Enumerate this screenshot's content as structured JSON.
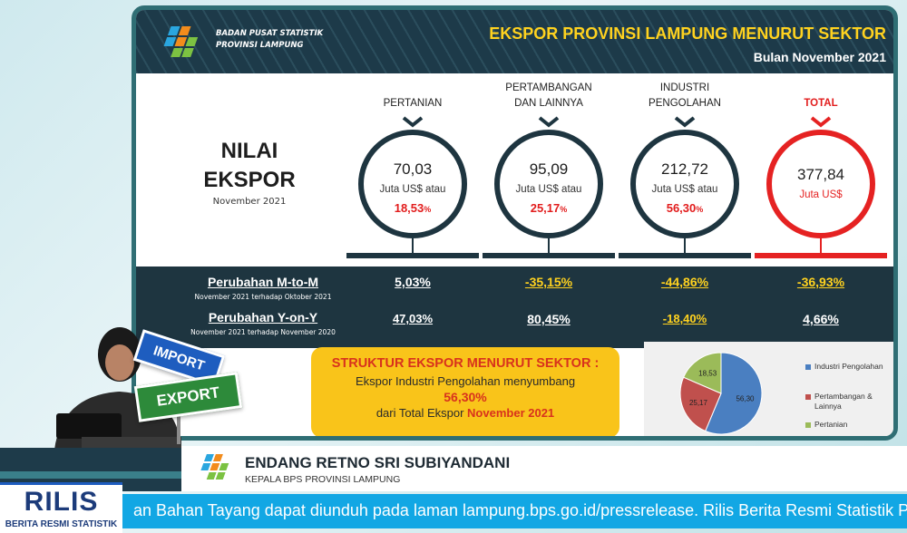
{
  "header": {
    "org_line1": "BADAN PUSAT STATISTIK",
    "org_line2": "PROVINSI LAMPUNG",
    "title": "EKSPOR PROVINSI LAMPUNG MENURUT SEKTOR",
    "subtitle": "Bulan November 2021"
  },
  "nilai": {
    "title_line1": "NILAI",
    "title_line2": "EKSPOR",
    "period": "November 2021"
  },
  "sectors": [
    {
      "label_line1": "PERTANIAN",
      "label_line2": "",
      "value": "70,03",
      "unit": "Juta US$ atau",
      "share": "18,53",
      "share_suffix": "%",
      "mtm": "5,03%",
      "yoy": "47,03%"
    },
    {
      "label_line1": "PERTAMBANGAN",
      "label_line2": "DAN LAINNYA",
      "value": "95,09",
      "unit": "Juta US$ atau",
      "share": "25,17",
      "share_suffix": "%",
      "mtm": "-35,15%",
      "yoy": "80,45%"
    },
    {
      "label_line1": "INDUSTRI",
      "label_line2": "PENGOLAHAN",
      "value": "212,72",
      "unit": "Juta US$ atau",
      "share": "56,30",
      "share_suffix": "%",
      "mtm": "-44,86%",
      "yoy": "-18,40%"
    },
    {
      "label_line1": "TOTAL",
      "label_line2": "",
      "value": "377,84",
      "unit": "Juta US$",
      "share": "",
      "share_suffix": "",
      "mtm": "-36,93%",
      "yoy": "4,66%"
    }
  ],
  "rows": {
    "mtm_label": "Perubahan M-to-M",
    "mtm_sub": "November 2021 terhadap Oktober 2021",
    "yoy_label": "Perubahan Y-on-Y",
    "yoy_sub": "November 2021 terhadap November 2020"
  },
  "struktur": {
    "title": "STRUKTUR EKSPOR MENURUT SEKTOR :",
    "line1": "Ekspor Industri Pengolahan menyumbang",
    "pct": "56,30%",
    "line3_prefix": "dari Total Ekspor",
    "line3_highlight": "November 2021"
  },
  "signs": {
    "import": "IMPORT",
    "export": "EXPORT"
  },
  "chart_data": {
    "type": "pie",
    "labels": [
      "Industri Pengolahan",
      "Pertambangan & Lainnya",
      "Pertanian"
    ],
    "values": [
      56.3,
      25.17,
      18.53
    ],
    "value_labels": [
      "56,30",
      "25,17",
      "18,53"
    ],
    "legend_position": "right",
    "colors": [
      "#4a7fc1",
      "#c0504d",
      "#9bbb59"
    ],
    "legend": [
      "Industri Pengolahan",
      "Pertambangan &",
      "Lainnya",
      "Pertanian"
    ]
  },
  "lower_third": {
    "name": "ENDANG RETNO SRI SUBIYANDANI",
    "role": "KEPALA BPS PROVINSI LAMPUNG",
    "rilis": "RILIS",
    "rilis_sub": "BERITA RESMI STATISTIK",
    "ticker": "an Bahan Tayang dapat diunduh pada laman lampung.bps.go.id/pressrelease. Rilis Berita Resmi Statistik Pro"
  },
  "colors": {
    "header_bg": "#1d3a49",
    "accent_yellow": "#ffd21f",
    "accent_red": "#e21d1d",
    "band_bg": "#1e3540",
    "ticker_bg": "#12a7e4"
  }
}
